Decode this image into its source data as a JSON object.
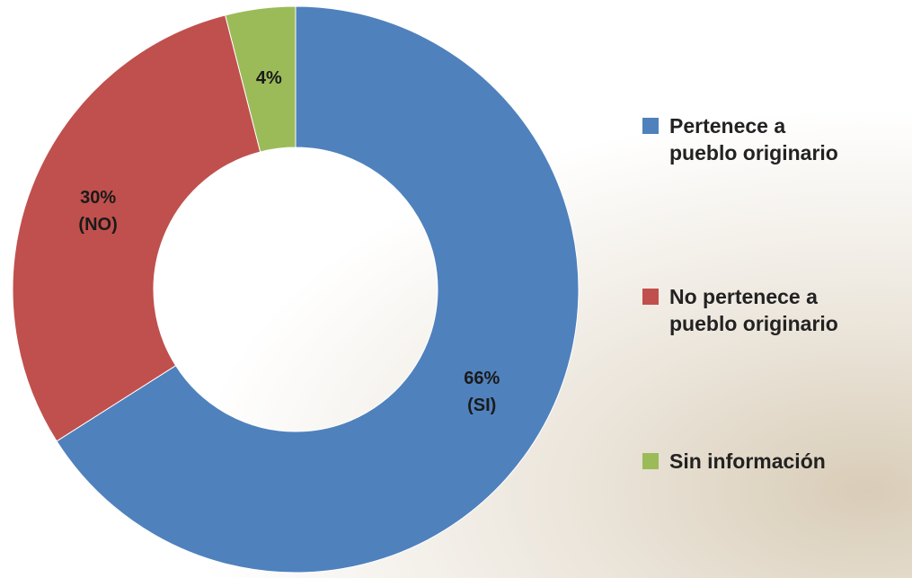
{
  "chart_data": {
    "type": "donut",
    "categories": [
      "Pertenece a pueblo originario",
      "No pertenece a pueblo originario",
      "Sin información"
    ],
    "values": [
      66,
      30,
      4
    ],
    "value_labels": [
      "66% (SI)",
      "30% (NO)",
      "4%"
    ],
    "colors": [
      "#4f81bd",
      "#c0504d",
      "#9bbb59"
    ],
    "legend": "right"
  }
}
